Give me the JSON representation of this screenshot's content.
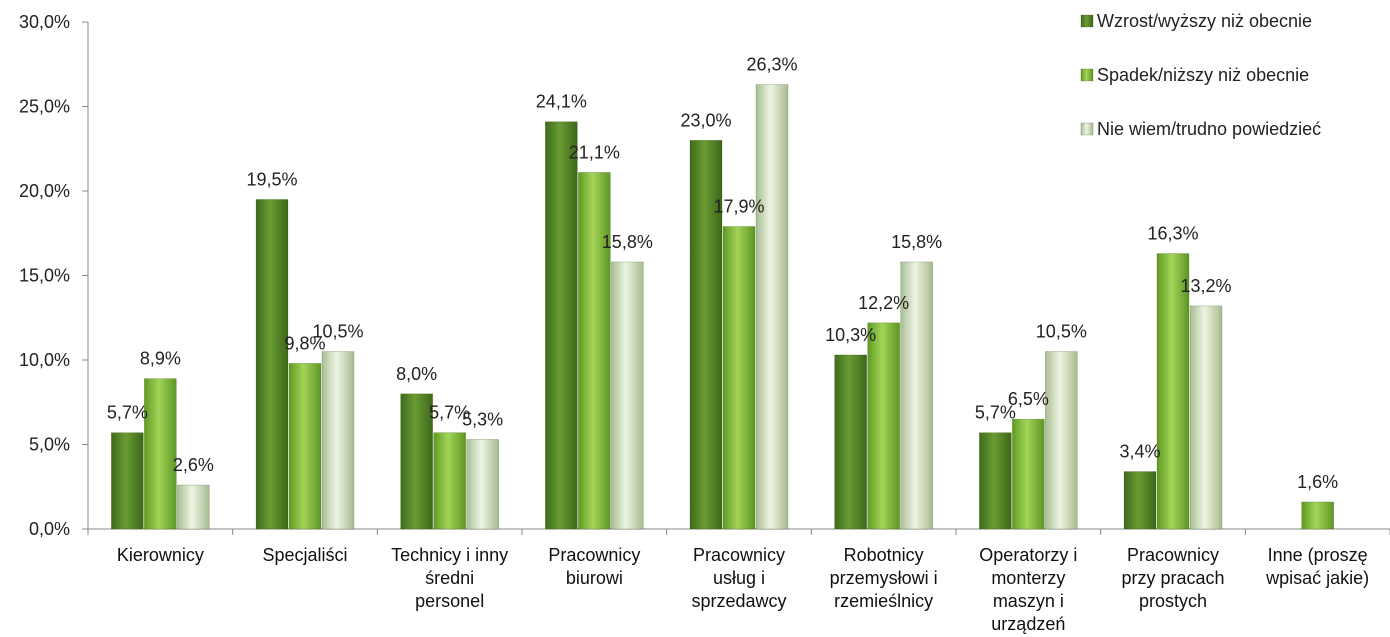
{
  "chart_data": {
    "type": "bar",
    "title": "",
    "xlabel": "",
    "ylabel": "",
    "ylim": [
      0,
      30
    ],
    "yticks": [
      "0,0%",
      "5,0%",
      "10,0%",
      "15,0%",
      "20,0%",
      "25,0%",
      "30,0%"
    ],
    "categories": [
      [
        "Kierownicy"
      ],
      [
        "Specjaliści"
      ],
      [
        "Technicy i inny",
        "średni",
        "personel"
      ],
      [
        "Pracownicy",
        "biurowi"
      ],
      [
        "Pracownicy",
        "usług i",
        "sprzedawcy"
      ],
      [
        "Robotnicy",
        "przemysłowi i",
        "rzemieślnicy"
      ],
      [
        "Operatorzy i",
        "monterzy",
        "maszyn i",
        "urządzeń"
      ],
      [
        "Pracownicy",
        "przy pracach",
        "prostych"
      ],
      [
        "Inne (proszę",
        "wpisać jakie)"
      ]
    ],
    "series": [
      {
        "name": "Wzrost/wyższy niż obecnie",
        "color": "#5a8a2a",
        "values": [
          5.7,
          19.5,
          8.0,
          24.1,
          23.0,
          10.3,
          5.7,
          3.4,
          null
        ],
        "labels": [
          "5,7%",
          "19,5%",
          "8,0%",
          "24,1%",
          "23,0%",
          "10,3%",
          "5,7%",
          "3,4%",
          ""
        ]
      },
      {
        "name": "Spadek/niższy niż obecnie",
        "color": "#86bb3e",
        "values": [
          8.9,
          9.8,
          5.7,
          21.1,
          17.9,
          12.2,
          6.5,
          16.3,
          1.6
        ],
        "labels": [
          "8,9%",
          "9,8%",
          "5,7%",
          "21,1%",
          "17,9%",
          "12,2%",
          "6,5%",
          "16,3%",
          "1,6%"
        ]
      },
      {
        "name": "Nie wiem/trudno powiedzieć",
        "color": "#cfe0b8",
        "values": [
          2.6,
          10.5,
          5.3,
          15.8,
          26.3,
          15.8,
          10.5,
          13.2,
          null
        ],
        "labels": [
          "2,6%",
          "10,5%",
          "5,3%",
          "15,8%",
          "26,3%",
          "15,8%",
          "10,5%",
          "13,2%",
          ""
        ]
      }
    ],
    "legend_position": "top-right",
    "grid": false
  }
}
